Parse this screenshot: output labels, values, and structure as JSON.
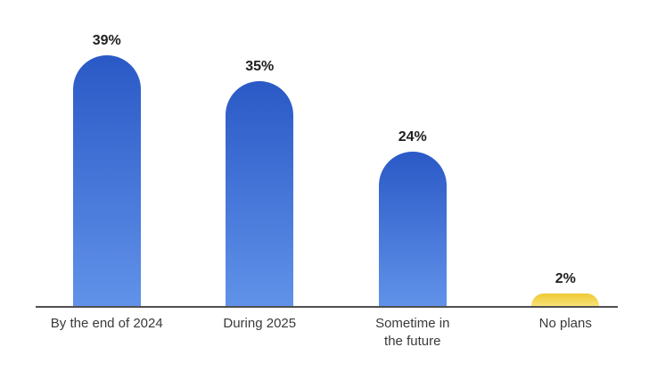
{
  "chart_data": {
    "type": "bar",
    "title": "",
    "xlabel": "",
    "ylabel": "",
    "categories": [
      "By the end of 2024",
      "During 2025",
      "Sometime in the future",
      "No plans"
    ],
    "category_display": [
      "By the end of 2024",
      "During 2025",
      "Sometime in\nthe future",
      "No plans"
    ],
    "values": [
      39,
      35,
      24,
      2
    ],
    "value_labels": [
      "39%",
      "35%",
      "24%",
      "2%"
    ],
    "unit": "%",
    "ylim": [
      0,
      42
    ],
    "grid": false,
    "legend": "none",
    "bar_gradients": [
      {
        "top": "#2a59c6",
        "bottom": "#6192e9"
      },
      {
        "top": "#2a59c6",
        "bottom": "#6192e9"
      },
      {
        "top": "#2a59c6",
        "bottom": "#6192e9"
      },
      {
        "top": "#efc832",
        "bottom": "#f8e378"
      }
    ]
  },
  "colors": {
    "background": "#ffffff",
    "axis_line": "#4f4f4f",
    "value_label_text": "#202020",
    "category_label_text": "#3a3a3a"
  }
}
